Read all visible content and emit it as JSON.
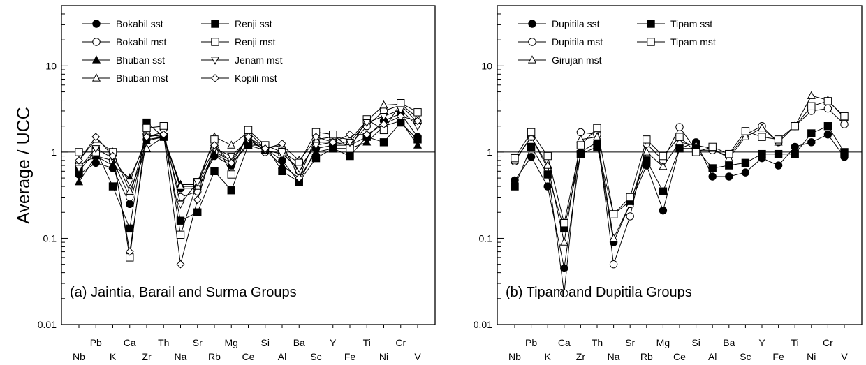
{
  "ylabel": "Average / UCC",
  "chart_data": [
    {
      "type": "line",
      "panel_label": "(a) Jaintia, Barail and Surma Groups",
      "ylabel": "Average / UCC",
      "xlabel": "",
      "yscale": "log",
      "ylim": [
        0.01,
        50
      ],
      "yticks": [
        0.01,
        0.1,
        1,
        10
      ],
      "ytick_labels": [
        "0.01",
        "0.1",
        "1",
        "10"
      ],
      "reference_line": 1,
      "categories": [
        "Nb",
        "Pb",
        "K",
        "Ca",
        "Zr",
        "Th",
        "Na",
        "Sr",
        "Rb",
        "Mg",
        "Ce",
        "Si",
        "Al",
        "Ba",
        "Sc",
        "Y",
        "Fe",
        "Ti",
        "Ni",
        "Cr",
        "V"
      ],
      "legend_position": "top-left",
      "series": [
        {
          "name": "Bokabil sst",
          "marker": "circle-filled",
          "values": [
            0.55,
            0.75,
            0.65,
            0.25,
            1.4,
            1.5,
            0.38,
            0.38,
            0.9,
            0.7,
            1.3,
            1.1,
            0.8,
            0.45,
            1.1,
            1.2,
            1.2,
            1.5,
            2.3,
            2.8,
            1.5
          ]
        },
        {
          "name": "Bokabil mst",
          "marker": "circle-open",
          "values": [
            0.7,
            0.9,
            0.8,
            0.3,
            1.6,
            1.5,
            0.3,
            0.35,
            1.0,
            0.8,
            1.5,
            1.0,
            1.0,
            0.6,
            1.3,
            1.3,
            1.2,
            2.0,
            3.0,
            3.5,
            2.2
          ]
        },
        {
          "name": "Bhuban sst",
          "marker": "triangle-filled",
          "values": [
            0.45,
            0.9,
            0.7,
            0.5,
            1.35,
            1.5,
            0.42,
            0.42,
            0.95,
            0.75,
            1.2,
            1.05,
            0.7,
            0.5,
            1.0,
            1.1,
            1.1,
            1.3,
            2.0,
            2.3,
            1.2
          ]
        },
        {
          "name": "Bhuban mst",
          "marker": "triangle-open",
          "values": [
            0.8,
            1.4,
            1.0,
            0.35,
            1.1,
            1.5,
            0.4,
            0.4,
            1.5,
            1.2,
            1.7,
            1.1,
            1.2,
            0.8,
            1.4,
            1.5,
            1.4,
            2.3,
            3.5,
            3.6,
            2.5
          ]
        },
        {
          "name": "Renji sst",
          "marker": "square-filled",
          "values": [
            0.6,
            1.05,
            0.4,
            0.13,
            2.2,
            1.5,
            0.16,
            0.2,
            0.6,
            0.36,
            1.2,
            1.2,
            0.6,
            0.45,
            0.85,
            1.1,
            0.9,
            1.5,
            1.3,
            2.2,
            1.4
          ]
        },
        {
          "name": "Renji mst",
          "marker": "square-open",
          "values": [
            1.0,
            1.0,
            1.0,
            0.06,
            1.9,
            2.0,
            0.11,
            0.45,
            1.4,
            0.55,
            1.8,
            1.2,
            1.0,
            0.75,
            1.7,
            1.6,
            1.1,
            2.4,
            1.8,
            3.7,
            2.9
          ]
        },
        {
          "name": "Jenam mst",
          "marker": "triangle-down-open",
          "values": [
            0.65,
            1.1,
            0.85,
            0.45,
            1.5,
            1.7,
            0.25,
            0.45,
            1.1,
            0.9,
            1.4,
            1.05,
            0.95,
            0.65,
            1.2,
            1.3,
            1.3,
            2.2,
            2.6,
            3.1,
            2.0
          ]
        },
        {
          "name": "Kopili mst",
          "marker": "diamond-open",
          "values": [
            0.8,
            1.5,
            0.9,
            0.07,
            1.5,
            1.6,
            0.05,
            0.28,
            1.2,
            0.75,
            1.5,
            1.1,
            1.25,
            0.5,
            1.5,
            1.3,
            1.6,
            1.6,
            2.1,
            2.6,
            2.3
          ]
        }
      ]
    },
    {
      "type": "line",
      "panel_label": "(b) Tipam and Dupitila Groups",
      "ylabel": "",
      "xlabel": "",
      "yscale": "log",
      "ylim": [
        0.01,
        50
      ],
      "yticks": [
        0.01,
        0.1,
        1,
        10
      ],
      "ytick_labels": [
        "0.01",
        "0.1",
        "1",
        "10"
      ],
      "reference_line": 1,
      "categories": [
        "Nb",
        "Pb",
        "K",
        "Ca",
        "Zr",
        "Th",
        "Na",
        "Sr",
        "Rb",
        "Mg",
        "Ce",
        "Si",
        "Al",
        "Ba",
        "Sc",
        "Y",
        "Fe",
        "Ti",
        "Ni",
        "Cr",
        "V"
      ],
      "legend_position": "top-left",
      "series": [
        {
          "name": "Dupitila sst",
          "marker": "circle-filled",
          "values": [
            0.47,
            0.88,
            0.4,
            0.045,
            1.0,
            1.3,
            0.09,
            0.25,
            0.7,
            0.21,
            1.1,
            1.3,
            0.52,
            0.52,
            0.58,
            0.85,
            0.7,
            1.15,
            1.3,
            1.6,
            0.88
          ]
        },
        {
          "name": "Dupitila mst",
          "marker": "circle-open",
          "values": [
            0.78,
            1.5,
            0.65,
            0.023,
            1.7,
            1.6,
            0.05,
            0.18,
            1.25,
            0.8,
            1.95,
            1.05,
            1.05,
            0.9,
            1.6,
            2.0,
            1.3,
            2.0,
            3.0,
            3.2,
            2.1
          ]
        },
        {
          "name": "Girujan mst",
          "marker": "triangle-open",
          "values": [
            0.8,
            1.5,
            0.7,
            0.09,
            1.4,
            1.5,
            0.1,
            0.25,
            1.0,
            0.68,
            1.3,
            1.2,
            1.1,
            0.85,
            1.5,
            1.9,
            1.3,
            2.0,
            4.5,
            4.0,
            2.5
          ]
        },
        {
          "name": "Tipam sst",
          "marker": "square-filled",
          "values": [
            0.4,
            1.15,
            0.55,
            0.13,
            0.95,
            1.15,
            0.19,
            0.27,
            0.8,
            0.35,
            1.1,
            1.1,
            0.65,
            0.7,
            0.75,
            0.95,
            0.95,
            0.95,
            1.65,
            2.0,
            1.0
          ]
        },
        {
          "name": "Tipam mst",
          "marker": "square-open",
          "values": [
            0.85,
            1.7,
            0.9,
            0.15,
            1.2,
            1.9,
            0.19,
            0.3,
            1.4,
            0.9,
            1.5,
            1.0,
            1.15,
            0.95,
            1.75,
            1.5,
            1.4,
            2.0,
            3.4,
            3.9,
            2.6
          ]
        }
      ]
    }
  ]
}
